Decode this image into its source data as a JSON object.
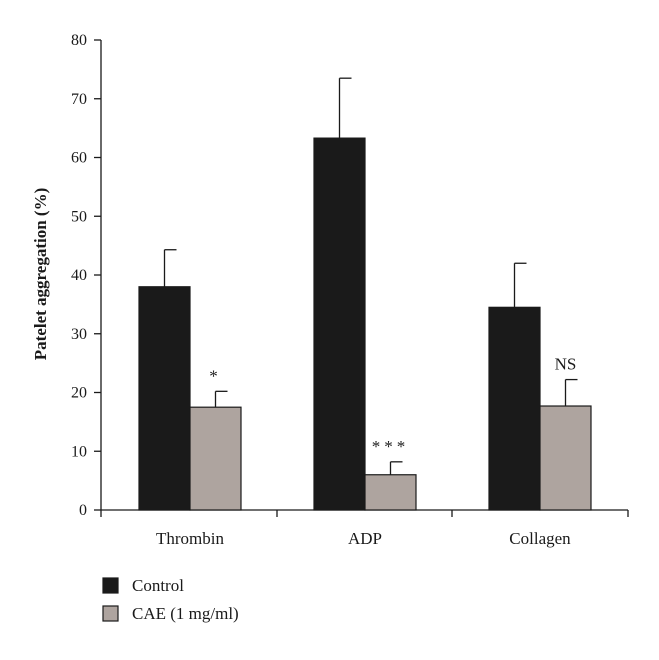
{
  "chart_data": {
    "type": "bar",
    "ylabel": "Patelet aggregation (%)",
    "xlabel": "",
    "ylim": [
      0,
      80
    ],
    "yticks": [
      0,
      10,
      20,
      30,
      40,
      50,
      60,
      70,
      80
    ],
    "categories": [
      "Thrombin",
      "ADP",
      "Collagen"
    ],
    "series": [
      {
        "name": "Control",
        "color": "#1a1a1a",
        "values": [
          38,
          63.3,
          34.5
        ],
        "errors": [
          6.3,
          10.2,
          7.5
        ]
      },
      {
        "name": "CAE (1 mg/ml)",
        "color": "#aea49f",
        "values": [
          17.5,
          6,
          17.7
        ],
        "errors": [
          2.7,
          2.2,
          4.5
        ]
      }
    ],
    "annotations": [
      "*",
      "***",
      "NS"
    ],
    "legend_position": "bottom-left",
    "grid": false
  }
}
